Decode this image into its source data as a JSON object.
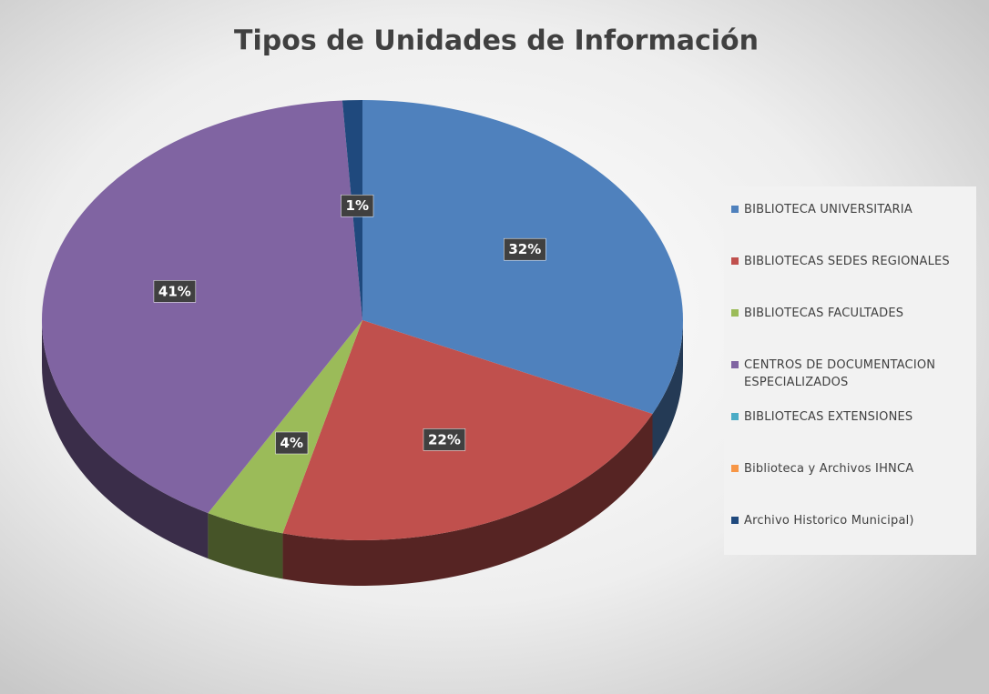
{
  "chart_data": {
    "type": "pie",
    "title": "Tipos de Unidades de Información",
    "categories": [
      "BIBLIOTECA UNIVERSITARIA",
      "BIBLIOTECAS SEDES REGIONALES",
      "BIBLIOTECAS FACULTADES",
      "CENTROS DE DOCUMENTACION ESPECIALIZADOS",
      "BIBLIOTECAS EXTENSIONES",
      "Biblioteca y Archivos IHNCA",
      "Archivo Historico Municipal)"
    ],
    "values": [
      32,
      22,
      4,
      41,
      0,
      0,
      1
    ],
    "value_labels": [
      "32%",
      "22%",
      "4%",
      "41%",
      null,
      null,
      "1%"
    ],
    "colors": [
      "#4f81bd",
      "#c0504d",
      "#9bbb59",
      "#8064a2",
      "#4bacc6",
      "#f79646",
      "#1f497d"
    ],
    "legend": "right"
  }
}
